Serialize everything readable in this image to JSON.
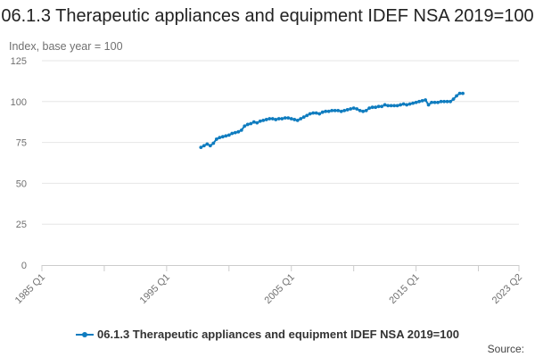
{
  "chart_data": {
    "type": "line",
    "title": "06.1.3 Therapeutic appliances and equipment IDEF NSA 2019=100",
    "y_unit_label": "Index, base year = 100",
    "ylim": [
      0,
      125
    ],
    "y_ticks": [
      "0",
      "25",
      "50",
      "75",
      "100",
      "125"
    ],
    "x_range": [
      "1985 Q1",
      "2023 Q2"
    ],
    "x_tick_labels": [
      "1985 Q1",
      "1995 Q1",
      "2005 Q1",
      "2015 Q1",
      "2023 Q2"
    ],
    "grid": "horizontal",
    "legend_position": "bottom",
    "series": [
      {
        "name": "06.1.3 Therapeutic appliances and equipment IDEF NSA 2019=100",
        "color": "#0f7cbf",
        "points": [
          [
            "1997 Q4",
            72.0
          ],
          [
            "1998 Q1",
            73.0
          ],
          [
            "1998 Q2",
            74.0
          ],
          [
            "1998 Q3",
            73.0
          ],
          [
            "1998 Q4",
            74.5
          ],
          [
            "1999 Q1",
            77.0
          ],
          [
            "1999 Q2",
            78.0
          ],
          [
            "1999 Q3",
            78.5
          ],
          [
            "1999 Q4",
            79.0
          ],
          [
            "2000 Q1",
            79.5
          ],
          [
            "2000 Q2",
            80.5
          ],
          [
            "2000 Q3",
            81.0
          ],
          [
            "2000 Q4",
            81.5
          ],
          [
            "2001 Q1",
            82.5
          ],
          [
            "2001 Q2",
            85.0
          ],
          [
            "2001 Q3",
            86.0
          ],
          [
            "2001 Q4",
            86.5
          ],
          [
            "2002 Q1",
            87.5
          ],
          [
            "2002 Q2",
            87.0
          ],
          [
            "2002 Q3",
            88.0
          ],
          [
            "2002 Q4",
            88.5
          ],
          [
            "2003 Q1",
            89.0
          ],
          [
            "2003 Q2",
            89.5
          ],
          [
            "2003 Q3",
            89.5
          ],
          [
            "2003 Q4",
            89.0
          ],
          [
            "2004 Q1",
            89.5
          ],
          [
            "2004 Q2",
            89.5
          ],
          [
            "2004 Q3",
            90.0
          ],
          [
            "2004 Q4",
            90.0
          ],
          [
            "2005 Q1",
            89.5
          ],
          [
            "2005 Q2",
            89.0
          ],
          [
            "2005 Q3",
            88.5
          ],
          [
            "2005 Q4",
            89.5
          ],
          [
            "2006 Q1",
            90.5
          ],
          [
            "2006 Q2",
            91.5
          ],
          [
            "2006 Q3",
            92.5
          ],
          [
            "2006 Q4",
            93.0
          ],
          [
            "2007 Q1",
            93.0
          ],
          [
            "2007 Q2",
            92.5
          ],
          [
            "2007 Q3",
            93.5
          ],
          [
            "2007 Q4",
            94.0
          ],
          [
            "2008 Q1",
            94.0
          ],
          [
            "2008 Q2",
            94.5
          ],
          [
            "2008 Q3",
            94.5
          ],
          [
            "2008 Q4",
            94.5
          ],
          [
            "2009 Q1",
            94.0
          ],
          [
            "2009 Q2",
            94.5
          ],
          [
            "2009 Q3",
            95.0
          ],
          [
            "2009 Q4",
            95.5
          ],
          [
            "2010 Q1",
            96.0
          ],
          [
            "2010 Q2",
            95.5
          ],
          [
            "2010 Q3",
            94.5
          ],
          [
            "2010 Q4",
            94.0
          ],
          [
            "2011 Q1",
            94.5
          ],
          [
            "2011 Q2",
            96.0
          ],
          [
            "2011 Q3",
            96.5
          ],
          [
            "2011 Q4",
            96.5
          ],
          [
            "2012 Q1",
            97.0
          ],
          [
            "2012 Q2",
            97.0
          ],
          [
            "2012 Q3",
            98.0
          ],
          [
            "2012 Q4",
            97.5
          ],
          [
            "2013 Q1",
            97.5
          ],
          [
            "2013 Q2",
            97.5
          ],
          [
            "2013 Q3",
            97.5
          ],
          [
            "2013 Q4",
            98.0
          ],
          [
            "2014 Q1",
            98.5
          ],
          [
            "2014 Q2",
            98.0
          ],
          [
            "2014 Q3",
            98.5
          ],
          [
            "2014 Q4",
            99.0
          ],
          [
            "2015 Q1",
            99.5
          ],
          [
            "2015 Q2",
            100.0
          ],
          [
            "2015 Q3",
            100.5
          ],
          [
            "2015 Q4",
            101.0
          ],
          [
            "2016 Q1",
            98.0
          ],
          [
            "2016 Q2",
            99.5
          ],
          [
            "2016 Q3",
            99.5
          ],
          [
            "2016 Q4",
            99.5
          ],
          [
            "2017 Q1",
            100.0
          ],
          [
            "2017 Q2",
            100.0
          ],
          [
            "2017 Q3",
            100.0
          ],
          [
            "2017 Q4",
            100.0
          ],
          [
            "2018 Q1",
            101.5
          ],
          [
            "2018 Q2",
            103.5
          ],
          [
            "2018 Q3",
            105.0
          ],
          [
            "2018 Q4",
            105.0
          ]
        ]
      }
    ]
  },
  "footer": {
    "source_label": "Source:"
  }
}
